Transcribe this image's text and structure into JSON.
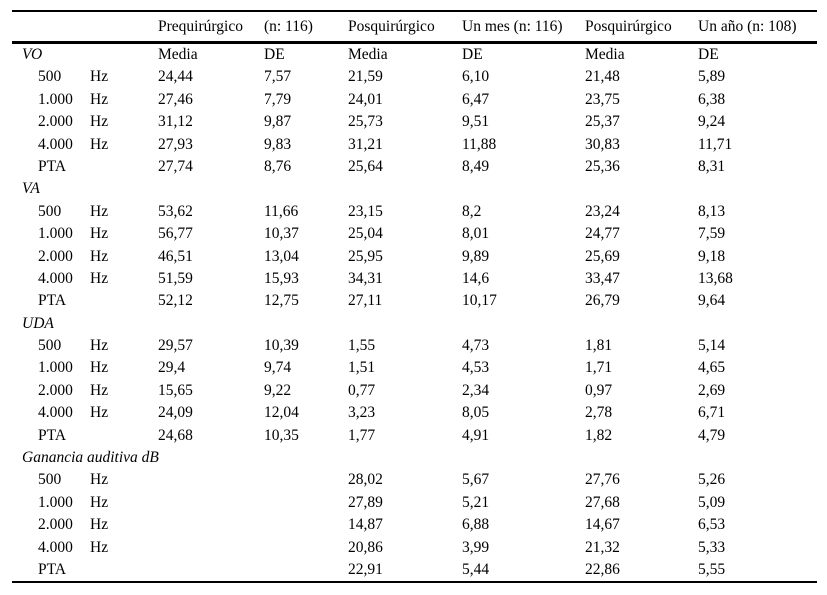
{
  "table": {
    "header": {
      "c2": "Prequirúrgico",
      "c3": "(n: 116)",
      "c4": "Posquirúrgico",
      "c5": "Un mes (n: 116)",
      "c6": "Posquirúrgico",
      "c7": "Un año (n: 108)"
    },
    "subheader_cells": [
      "Media",
      "DE",
      "Media",
      "DE",
      "Media",
      "DE"
    ],
    "sections": [
      {
        "label": "VO",
        "rows": [
          {
            "label": "500",
            "unit": "Hz",
            "values": [
              "24,44",
              "7,57",
              "21,59",
              "6,10",
              "21,48",
              "5,89"
            ]
          },
          {
            "label": "1.000",
            "unit": "Hz",
            "values": [
              "27,46",
              "7,79",
              "24,01",
              "6,47",
              "23,75",
              "6,38"
            ]
          },
          {
            "label": "2.000",
            "unit": "Hz",
            "values": [
              "31,12",
              "9,87",
              "25,73",
              "9,51",
              "25,37",
              "9,24"
            ]
          },
          {
            "label": "4.000",
            "unit": "Hz",
            "values": [
              "27,93",
              "9,83",
              "31,21",
              "11,88",
              "30,83",
              "11,71"
            ]
          },
          {
            "label": "PTA",
            "unit": "",
            "values": [
              "27,74",
              "8,76",
              "25,64",
              "8,49",
              "25,36",
              "8,31"
            ]
          }
        ]
      },
      {
        "label": "VA",
        "rows": [
          {
            "label": "500",
            "unit": "Hz",
            "values": [
              "53,62",
              "11,66",
              "23,15",
              "8,2",
              "23,24",
              "8,13"
            ]
          },
          {
            "label": "1.000",
            "unit": "Hz",
            "values": [
              "56,77",
              "10,37",
              "25,04",
              "8,01",
              "24,77",
              "7,59"
            ]
          },
          {
            "label": "2.000",
            "unit": "Hz",
            "values": [
              "46,51",
              "13,04",
              "25,95",
              "9,89",
              "25,69",
              "9,18"
            ]
          },
          {
            "label": "4.000",
            "unit": "Hz",
            "values": [
              "51,59",
              "15,93",
              "34,31",
              "14,6",
              "33,47",
              "13,68"
            ]
          },
          {
            "label": "PTA",
            "unit": "",
            "values": [
              "52,12",
              "12,75",
              "27,11",
              "10,17",
              "26,79",
              "9,64"
            ]
          }
        ]
      },
      {
        "label": "UDA",
        "rows": [
          {
            "label": "500",
            "unit": "Hz",
            "values": [
              "29,57",
              "10,39",
              "1,55",
              "4,73",
              "1,81",
              "5,14"
            ]
          },
          {
            "label": "1.000",
            "unit": "Hz",
            "values": [
              "29,4",
              "9,74",
              "1,51",
              "4,53",
              "1,71",
              "4,65"
            ]
          },
          {
            "label": "2.000",
            "unit": "Hz",
            "values": [
              "15,65",
              "9,22",
              "0,77",
              "2,34",
              "0,97",
              "2,69"
            ]
          },
          {
            "label": "4.000",
            "unit": "Hz",
            "values": [
              "24,09",
              "12,04",
              "3,23",
              "8,05",
              "2,78",
              "6,71"
            ]
          },
          {
            "label": "PTA",
            "unit": "",
            "values": [
              "24,68",
              "10,35",
              "1,77",
              "4,91",
              "1,82",
              "4,79"
            ]
          }
        ]
      },
      {
        "label": "Ganancia auditiva dB",
        "rows": [
          {
            "label": "500",
            "unit": "Hz",
            "values": [
              "",
              "",
              "28,02",
              "5,67",
              "27,76",
              "5,26"
            ]
          },
          {
            "label": "1.000",
            "unit": "Hz",
            "values": [
              "",
              "",
              "27,89",
              "5,21",
              "27,68",
              "5,09"
            ]
          },
          {
            "label": "2.000",
            "unit": "Hz",
            "values": [
              "",
              "",
              "14,87",
              "6,88",
              "14,67",
              "6,53"
            ]
          },
          {
            "label": "4.000",
            "unit": "Hz",
            "values": [
              "",
              "",
              "20,86",
              "3,99",
              "21,32",
              "5,33"
            ]
          },
          {
            "label": "PTA",
            "unit": "",
            "values": [
              "",
              "",
              "22,91",
              "5,44",
              "22,86",
              "5,55"
            ]
          }
        ]
      }
    ]
  }
}
